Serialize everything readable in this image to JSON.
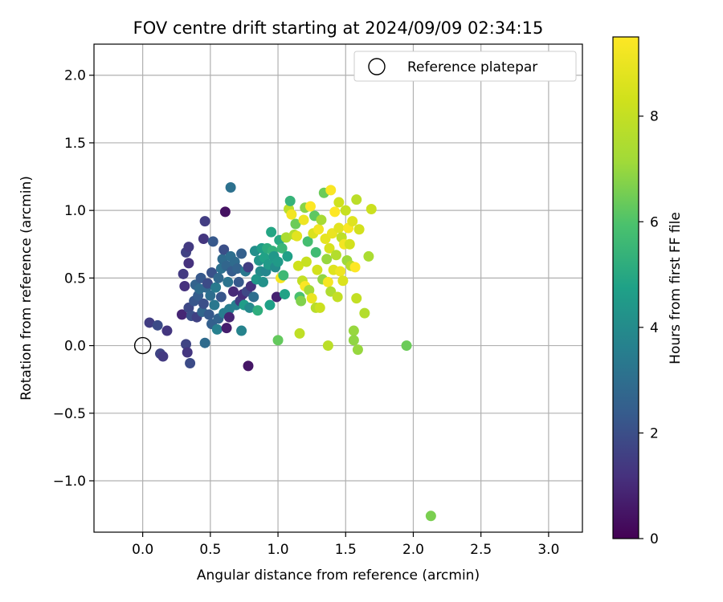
{
  "chart_data": {
    "type": "scatter",
    "title": "FOV centre drift starting at 2024/09/09 02:34:15",
    "xlabel": "Angular distance from reference (arcmin)",
    "ylabel": "Rotation from reference (arcmin)",
    "xlim": [
      -0.36,
      3.25
    ],
    "ylim": [
      -1.38,
      2.23
    ],
    "xticks": [
      0.0,
      0.5,
      1.0,
      1.5,
      2.0,
      2.5,
      3.0
    ],
    "xtick_labels": [
      "0.0",
      "0.5",
      "1.0",
      "1.5",
      "2.0",
      "2.5",
      "3.0"
    ],
    "yticks": [
      -1.0,
      -0.5,
      0.0,
      0.5,
      1.0,
      1.5,
      2.0
    ],
    "ytick_labels": [
      "−1.0",
      "−0.5",
      "0.0",
      "0.5",
      "1.0",
      "1.5",
      "2.0"
    ],
    "grid": true,
    "legend": {
      "position": "top-right",
      "entries": [
        "Reference platepar"
      ]
    },
    "reference_point": {
      "x": 0.0,
      "y": 0.0
    },
    "colorbar": {
      "label": "Hours from first FF file",
      "colormap": "viridis",
      "range": [
        0,
        9.5
      ],
      "ticks": [
        0,
        2,
        4,
        6,
        8
      ],
      "tick_labels": [
        "0",
        "2",
        "4",
        "6",
        "8"
      ]
    },
    "points": [
      {
        "x": 0.05,
        "y": 0.17,
        "h": 1.5
      },
      {
        "x": 0.11,
        "y": 0.15,
        "h": 1.9
      },
      {
        "x": 0.13,
        "y": -0.06,
        "h": 1.7
      },
      {
        "x": 0.15,
        "y": -0.08,
        "h": 1.4
      },
      {
        "x": 0.18,
        "y": 0.11,
        "h": 1.3
      },
      {
        "x": 0.29,
        "y": 0.23,
        "h": 0.9
      },
      {
        "x": 0.3,
        "y": 0.53,
        "h": 1.4
      },
      {
        "x": 0.31,
        "y": 0.44,
        "h": 1.2
      },
      {
        "x": 0.32,
        "y": 0.69,
        "h": 1.6
      },
      {
        "x": 0.32,
        "y": 0.01,
        "h": 1.7
      },
      {
        "x": 0.33,
        "y": -0.05,
        "h": 1.3
      },
      {
        "x": 0.34,
        "y": 0.73,
        "h": 1.4
      },
      {
        "x": 0.34,
        "y": 0.61,
        "h": 1.2
      },
      {
        "x": 0.34,
        "y": 0.28,
        "h": 1.8
      },
      {
        "x": 0.35,
        "y": -0.13,
        "h": 1.9
      },
      {
        "x": 0.36,
        "y": 0.22,
        "h": 2.0
      },
      {
        "x": 0.38,
        "y": 0.33,
        "h": 2.2
      },
      {
        "x": 0.39,
        "y": 0.45,
        "h": 2.6
      },
      {
        "x": 0.4,
        "y": 0.21,
        "h": 1.6
      },
      {
        "x": 0.41,
        "y": 0.37,
        "h": 2.4
      },
      {
        "x": 0.42,
        "y": 0.42,
        "h": 2.9
      },
      {
        "x": 0.43,
        "y": 0.5,
        "h": 2.3
      },
      {
        "x": 0.44,
        "y": 0.25,
        "h": 2.7
      },
      {
        "x": 0.45,
        "y": 0.31,
        "h": 2.0
      },
      {
        "x": 0.45,
        "y": 0.79,
        "h": 1.3
      },
      {
        "x": 0.46,
        "y": 0.92,
        "h": 1.5
      },
      {
        "x": 0.46,
        "y": 0.02,
        "h": 2.9
      },
      {
        "x": 0.47,
        "y": 0.43,
        "h": 2.8
      },
      {
        "x": 0.48,
        "y": 0.46,
        "h": 1.9
      },
      {
        "x": 0.49,
        "y": 0.23,
        "h": 2.3
      },
      {
        "x": 0.5,
        "y": 0.37,
        "h": 3.0
      },
      {
        "x": 0.51,
        "y": 0.16,
        "h": 2.5
      },
      {
        "x": 0.51,
        "y": 0.54,
        "h": 2.1
      },
      {
        "x": 0.52,
        "y": 0.77,
        "h": 2.3
      },
      {
        "x": 0.53,
        "y": 0.3,
        "h": 3.3
      },
      {
        "x": 0.54,
        "y": 0.43,
        "h": 3.4
      },
      {
        "x": 0.55,
        "y": 0.12,
        "h": 3.6
      },
      {
        "x": 0.56,
        "y": 0.2,
        "h": 2.6
      },
      {
        "x": 0.56,
        "y": 0.5,
        "h": 2.8
      },
      {
        "x": 0.58,
        "y": 0.36,
        "h": 2.2
      },
      {
        "x": 0.58,
        "y": 0.57,
        "h": 3.1
      },
      {
        "x": 0.59,
        "y": 0.64,
        "h": 2.9
      },
      {
        "x": 0.6,
        "y": 0.71,
        "h": 2.0
      },
      {
        "x": 0.6,
        "y": 0.24,
        "h": 3.5
      },
      {
        "x": 0.61,
        "y": 0.99,
        "h": 0.4
      },
      {
        "x": 0.62,
        "y": 0.59,
        "h": 2.7
      },
      {
        "x": 0.62,
        "y": 0.13,
        "h": 0.7
      },
      {
        "x": 0.63,
        "y": 0.47,
        "h": 3.2
      },
      {
        "x": 0.64,
        "y": 0.27,
        "h": 3.5
      },
      {
        "x": 0.64,
        "y": 0.21,
        "h": 0.9
      },
      {
        "x": 0.65,
        "y": 1.17,
        "h": 3.1
      },
      {
        "x": 0.65,
        "y": 0.66,
        "h": 3.0
      },
      {
        "x": 0.66,
        "y": 0.55,
        "h": 2.4
      },
      {
        "x": 0.67,
        "y": 0.4,
        "h": 1.0
      },
      {
        "x": 0.68,
        "y": 0.62,
        "h": 2.9
      },
      {
        "x": 0.69,
        "y": 0.3,
        "h": 3.6
      },
      {
        "x": 0.7,
        "y": 0.57,
        "h": 2.6
      },
      {
        "x": 0.71,
        "y": 0.47,
        "h": 2.3
      },
      {
        "x": 0.72,
        "y": 0.33,
        "h": 1.4
      },
      {
        "x": 0.73,
        "y": 0.68,
        "h": 2.5
      },
      {
        "x": 0.73,
        "y": 0.11,
        "h": 3.7
      },
      {
        "x": 0.74,
        "y": 0.38,
        "h": 1.1
      },
      {
        "x": 0.75,
        "y": 0.3,
        "h": 4.6
      },
      {
        "x": 0.76,
        "y": 0.55,
        "h": 3.3
      },
      {
        "x": 0.77,
        "y": 0.4,
        "h": 1.8
      },
      {
        "x": 0.78,
        "y": 0.58,
        "h": 1.5
      },
      {
        "x": 0.78,
        "y": -0.15,
        "h": 0.5
      },
      {
        "x": 0.79,
        "y": 0.28,
        "h": 3.9
      },
      {
        "x": 0.8,
        "y": 0.44,
        "h": 1.2
      },
      {
        "x": 0.82,
        "y": 0.36,
        "h": 3.0
      },
      {
        "x": 0.83,
        "y": 0.7,
        "h": 4.1
      },
      {
        "x": 0.84,
        "y": 0.49,
        "h": 4.4
      },
      {
        "x": 0.85,
        "y": 0.26,
        "h": 5.2
      },
      {
        "x": 0.86,
        "y": 0.63,
        "h": 4.3
      },
      {
        "x": 0.87,
        "y": 0.55,
        "h": 4.0
      },
      {
        "x": 0.88,
        "y": 0.72,
        "h": 4.6
      },
      {
        "x": 0.89,
        "y": 0.47,
        "h": 4.2
      },
      {
        "x": 0.9,
        "y": 0.65,
        "h": 4.8
      },
      {
        "x": 0.91,
        "y": 0.55,
        "h": 3.8
      },
      {
        "x": 0.92,
        "y": 0.72,
        "h": 5.1
      },
      {
        "x": 0.93,
        "y": 0.6,
        "h": 4.5
      },
      {
        "x": 0.94,
        "y": 0.3,
        "h": 4.7
      },
      {
        "x": 0.95,
        "y": 0.84,
        "h": 4.9
      },
      {
        "x": 0.96,
        "y": 0.7,
        "h": 5.3
      },
      {
        "x": 0.97,
        "y": 0.66,
        "h": 4.4
      },
      {
        "x": 0.98,
        "y": 0.58,
        "h": 4.0
      },
      {
        "x": 0.99,
        "y": 0.36,
        "h": 0.8
      },
      {
        "x": 1.0,
        "y": 0.04,
        "h": 6.3
      },
      {
        "x": 1.0,
        "y": 0.62,
        "h": 4.5
      },
      {
        "x": 1.01,
        "y": 0.78,
        "h": 5.0
      },
      {
        "x": 1.02,
        "y": 0.5,
        "h": 9.3
      },
      {
        "x": 1.03,
        "y": 0.72,
        "h": 5.5
      },
      {
        "x": 1.04,
        "y": 0.52,
        "h": 5.6
      },
      {
        "x": 1.05,
        "y": 0.38,
        "h": 4.8
      },
      {
        "x": 1.06,
        "y": 0.8,
        "h": 7.4
      },
      {
        "x": 1.07,
        "y": 0.66,
        "h": 4.7
      },
      {
        "x": 1.08,
        "y": 1.01,
        "h": 7.8
      },
      {
        "x": 1.09,
        "y": 1.07,
        "h": 5.4
      },
      {
        "x": 1.1,
        "y": 0.97,
        "h": 9.2
      },
      {
        "x": 1.12,
        "y": 0.82,
        "h": 7.6
      },
      {
        "x": 1.13,
        "y": 0.9,
        "h": 6.4
      },
      {
        "x": 1.14,
        "y": 0.81,
        "h": 8.8
      },
      {
        "x": 1.15,
        "y": 0.59,
        "h": 8.3
      },
      {
        "x": 1.16,
        "y": 0.36,
        "h": 5.9
      },
      {
        "x": 1.16,
        "y": 0.09,
        "h": 7.9
      },
      {
        "x": 1.17,
        "y": 0.33,
        "h": 6.7
      },
      {
        "x": 1.18,
        "y": 0.48,
        "h": 8.0
      },
      {
        "x": 1.19,
        "y": 0.93,
        "h": 9.1
      },
      {
        "x": 1.2,
        "y": 1.02,
        "h": 6.8
      },
      {
        "x": 1.2,
        "y": 0.44,
        "h": 9.4
      },
      {
        "x": 1.21,
        "y": 0.62,
        "h": 8.1
      },
      {
        "x": 1.22,
        "y": 0.77,
        "h": 5.8
      },
      {
        "x": 1.23,
        "y": 0.41,
        "h": 7.2
      },
      {
        "x": 1.24,
        "y": 1.03,
        "h": 9.5
      },
      {
        "x": 1.25,
        "y": 0.35,
        "h": 9.0
      },
      {
        "x": 1.26,
        "y": 0.83,
        "h": 8.6
      },
      {
        "x": 1.27,
        "y": 0.96,
        "h": 6.2
      },
      {
        "x": 1.28,
        "y": 0.69,
        "h": 5.7
      },
      {
        "x": 1.28,
        "y": 0.28,
        "h": 7.7
      },
      {
        "x": 1.29,
        "y": 0.56,
        "h": 8.4
      },
      {
        "x": 1.3,
        "y": 0.86,
        "h": 9.2
      },
      {
        "x": 1.31,
        "y": 0.28,
        "h": 8.2
      },
      {
        "x": 1.32,
        "y": 0.93,
        "h": 7.3
      },
      {
        "x": 1.33,
        "y": 0.49,
        "h": 6.9
      },
      {
        "x": 1.34,
        "y": 1.13,
        "h": 6.4
      },
      {
        "x": 1.35,
        "y": 0.79,
        "h": 8.9
      },
      {
        "x": 1.36,
        "y": 0.64,
        "h": 7.0
      },
      {
        "x": 1.37,
        "y": 0.47,
        "h": 9.3
      },
      {
        "x": 1.37,
        "y": 0.0,
        "h": 7.8
      },
      {
        "x": 1.38,
        "y": 0.72,
        "h": 8.5
      },
      {
        "x": 1.39,
        "y": 1.15,
        "h": 9.4
      },
      {
        "x": 1.39,
        "y": 0.4,
        "h": 7.5
      },
      {
        "x": 1.4,
        "y": 0.83,
        "h": 9.0
      },
      {
        "x": 1.41,
        "y": 0.56,
        "h": 8.7
      },
      {
        "x": 1.42,
        "y": 0.99,
        "h": 9.5
      },
      {
        "x": 1.43,
        "y": 0.67,
        "h": 7.6
      },
      {
        "x": 1.44,
        "y": 0.36,
        "h": 8.0
      },
      {
        "x": 1.45,
        "y": 0.87,
        "h": 8.8
      },
      {
        "x": 1.45,
        "y": 1.06,
        "h": 8.3
      },
      {
        "x": 1.46,
        "y": 0.55,
        "h": 9.1
      },
      {
        "x": 1.47,
        "y": 0.8,
        "h": 7.9
      },
      {
        "x": 1.48,
        "y": 0.48,
        "h": 8.6
      },
      {
        "x": 1.49,
        "y": 0.75,
        "h": 9.2
      },
      {
        "x": 1.5,
        "y": 1.0,
        "h": 8.1
      },
      {
        "x": 1.51,
        "y": 0.63,
        "h": 7.1
      },
      {
        "x": 1.52,
        "y": 0.87,
        "h": 9.4
      },
      {
        "x": 1.53,
        "y": 0.75,
        "h": 8.4
      },
      {
        "x": 1.54,
        "y": 0.59,
        "h": 7.7
      },
      {
        "x": 1.55,
        "y": 0.92,
        "h": 8.7
      },
      {
        "x": 1.56,
        "y": 0.11,
        "h": 7.0
      },
      {
        "x": 1.56,
        "y": 0.04,
        "h": 6.9
      },
      {
        "x": 1.57,
        "y": 0.58,
        "h": 9.5
      },
      {
        "x": 1.58,
        "y": 1.08,
        "h": 7.8
      },
      {
        "x": 1.58,
        "y": 0.35,
        "h": 8.0
      },
      {
        "x": 1.59,
        "y": -0.03,
        "h": 7.0
      },
      {
        "x": 1.6,
        "y": 0.86,
        "h": 8.4
      },
      {
        "x": 1.64,
        "y": 0.24,
        "h": 7.6
      },
      {
        "x": 1.67,
        "y": 0.66,
        "h": 7.4
      },
      {
        "x": 1.69,
        "y": 1.01,
        "h": 8.2
      },
      {
        "x": 1.95,
        "y": 0.0,
        "h": 6.4
      },
      {
        "x": 2.13,
        "y": -1.26,
        "h": 6.6
      }
    ]
  }
}
